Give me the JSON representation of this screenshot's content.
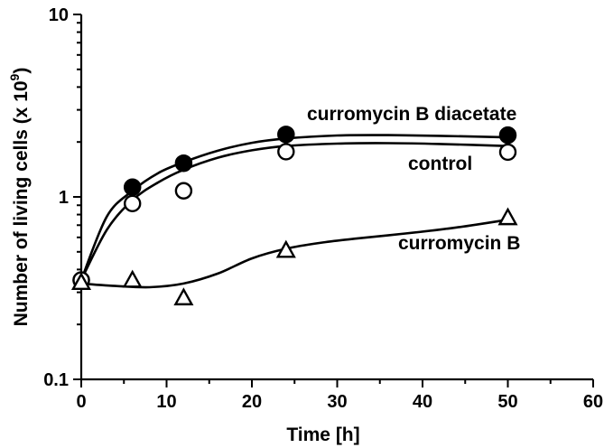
{
  "chart_data": {
    "type": "scatter",
    "xlabel": "Time [h]",
    "ylabel": "Number of living cells (x 10",
    "ylabel_exponent": "9",
    "ylabel_suffix": ")",
    "xlim": [
      0,
      60
    ],
    "ylim": [
      0.1,
      10
    ],
    "yscale": "log",
    "grid": false,
    "x_ticks": [
      0,
      10,
      20,
      30,
      40,
      50,
      60
    ],
    "x_tick_labels": [
      "0",
      "10",
      "20",
      "30",
      "40",
      "50",
      "60"
    ],
    "y_ticks": [
      0.1,
      1,
      10
    ],
    "y_tick_labels": [
      "0.1",
      "1",
      "10"
    ],
    "series": [
      {
        "name": "curromycin B diacetate",
        "marker": "filled-circle",
        "x": [
          0,
          6,
          12,
          24,
          50
        ],
        "y": [
          0.35,
          1.13,
          1.53,
          2.2,
          2.18
        ],
        "curve_x": [
          0,
          3,
          6,
          9,
          12,
          16,
          20,
          24,
          30,
          36,
          42,
          50
        ],
        "curve_y": [
          0.35,
          0.78,
          1.08,
          1.35,
          1.55,
          1.79,
          1.98,
          2.09,
          2.17,
          2.18,
          2.16,
          2.12
        ]
      },
      {
        "name": "control",
        "marker": "open-circle",
        "x": [
          0,
          6,
          12,
          24,
          50
        ],
        "y": [
          0.35,
          0.92,
          1.08,
          1.77,
          1.76
        ],
        "curve_x": [
          0,
          3,
          6,
          9,
          12,
          16,
          20,
          24,
          30,
          36,
          42,
          50
        ],
        "curve_y": [
          0.35,
          0.66,
          0.96,
          1.2,
          1.41,
          1.64,
          1.8,
          1.9,
          1.96,
          1.97,
          1.95,
          1.9
        ]
      },
      {
        "name": "curromycin B",
        "marker": "open-triangle",
        "x": [
          0,
          6,
          12,
          24,
          50
        ],
        "y": [
          0.34,
          0.35,
          0.28,
          0.51,
          0.77
        ],
        "curve_x": [
          0,
          4,
          8,
          12,
          16,
          20,
          24,
          28,
          32,
          38,
          44,
          50
        ],
        "curve_y": [
          0.335,
          0.325,
          0.32,
          0.335,
          0.38,
          0.46,
          0.52,
          0.56,
          0.59,
          0.63,
          0.68,
          0.75
        ]
      }
    ]
  }
}
